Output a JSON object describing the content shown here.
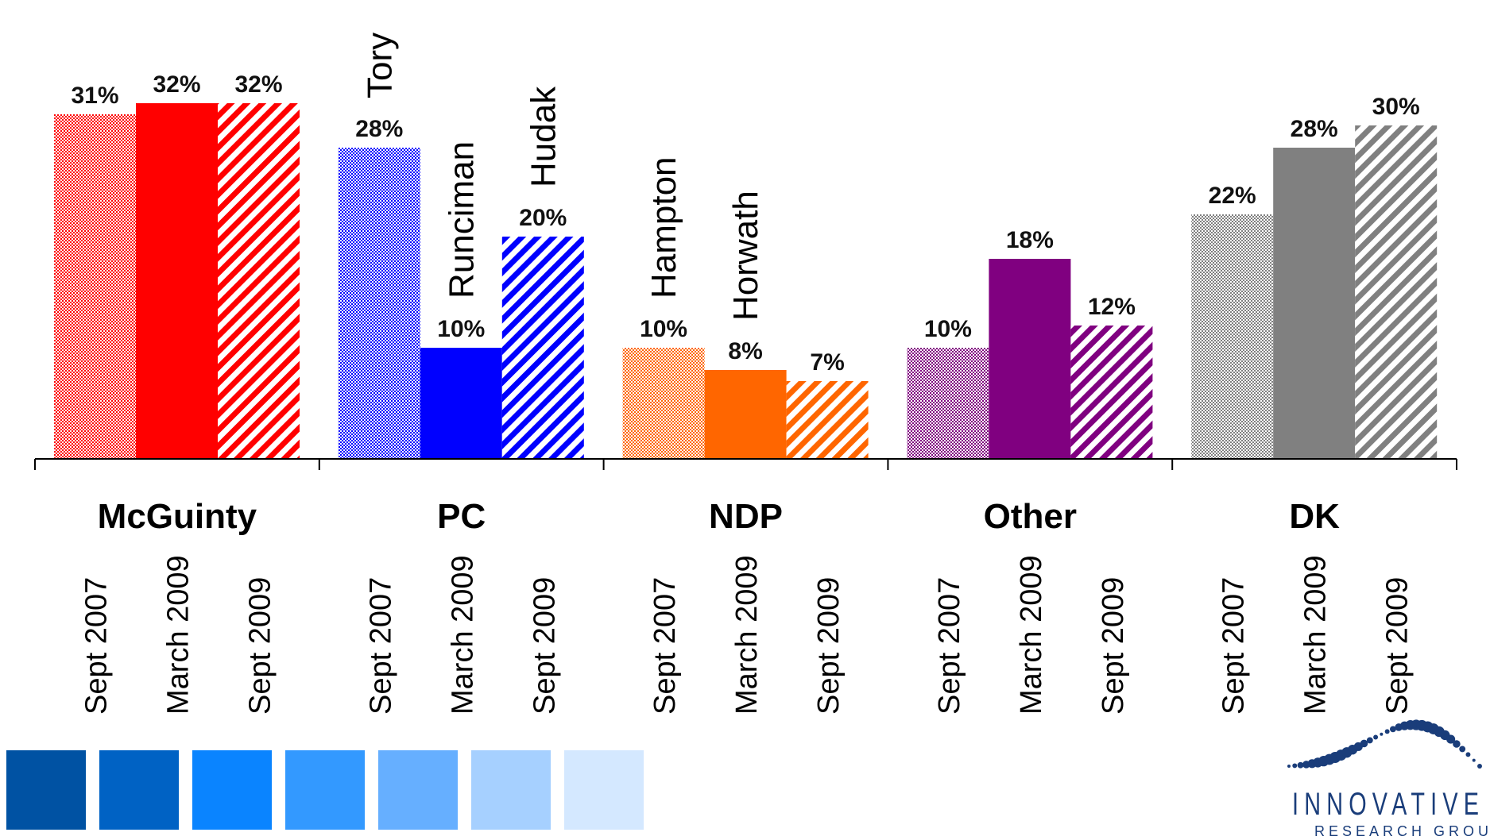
{
  "chart_data": {
    "type": "bar",
    "title": "",
    "xlabel": "",
    "ylabel": "",
    "ylim": [
      0,
      35
    ],
    "grid": false,
    "legend": "none",
    "periods": [
      "Sept 2007",
      "March 2009",
      "Sept 2009"
    ],
    "categories": [
      {
        "name": "McGuinty",
        "color": "#ff0000",
        "values": [
          31,
          32,
          32
        ],
        "labels": [
          "31%",
          "32%",
          "32%"
        ],
        "leaders": [
          "",
          "",
          ""
        ]
      },
      {
        "name": "PC",
        "color": "#0000ff",
        "values": [
          28,
          10,
          20
        ],
        "labels": [
          "28%",
          "10%",
          "20%"
        ],
        "leaders": [
          "Tory",
          "Runciman",
          "Hudak"
        ]
      },
      {
        "name": "NDP",
        "color": "#ff6600",
        "values": [
          10,
          8,
          7
        ],
        "labels": [
          "10%",
          "8%",
          "7%"
        ],
        "leaders": [
          "Hampton",
          "Horwath",
          ""
        ]
      },
      {
        "name": "Other",
        "color": "#800080",
        "values": [
          10,
          18,
          12
        ],
        "labels": [
          "10%",
          "18%",
          "12%"
        ],
        "leaders": [
          "",
          "",
          ""
        ]
      },
      {
        "name": "DK",
        "color": "#808080",
        "values": [
          22,
          28,
          30
        ],
        "labels": [
          "22%",
          "28%",
          "30%"
        ],
        "leaders": [
          "",
          "",
          ""
        ]
      }
    ]
  },
  "decor": {
    "swatches": [
      "#0052a3",
      "#0062c4",
      "#0a84ff",
      "#3399ff",
      "#66afff",
      "#a6d0ff",
      "#d4e8ff"
    ]
  },
  "logo": {
    "name": "INNOVATIVE",
    "subtitle": "RESEARCH GROUP",
    "color": "#1a3d7a"
  }
}
